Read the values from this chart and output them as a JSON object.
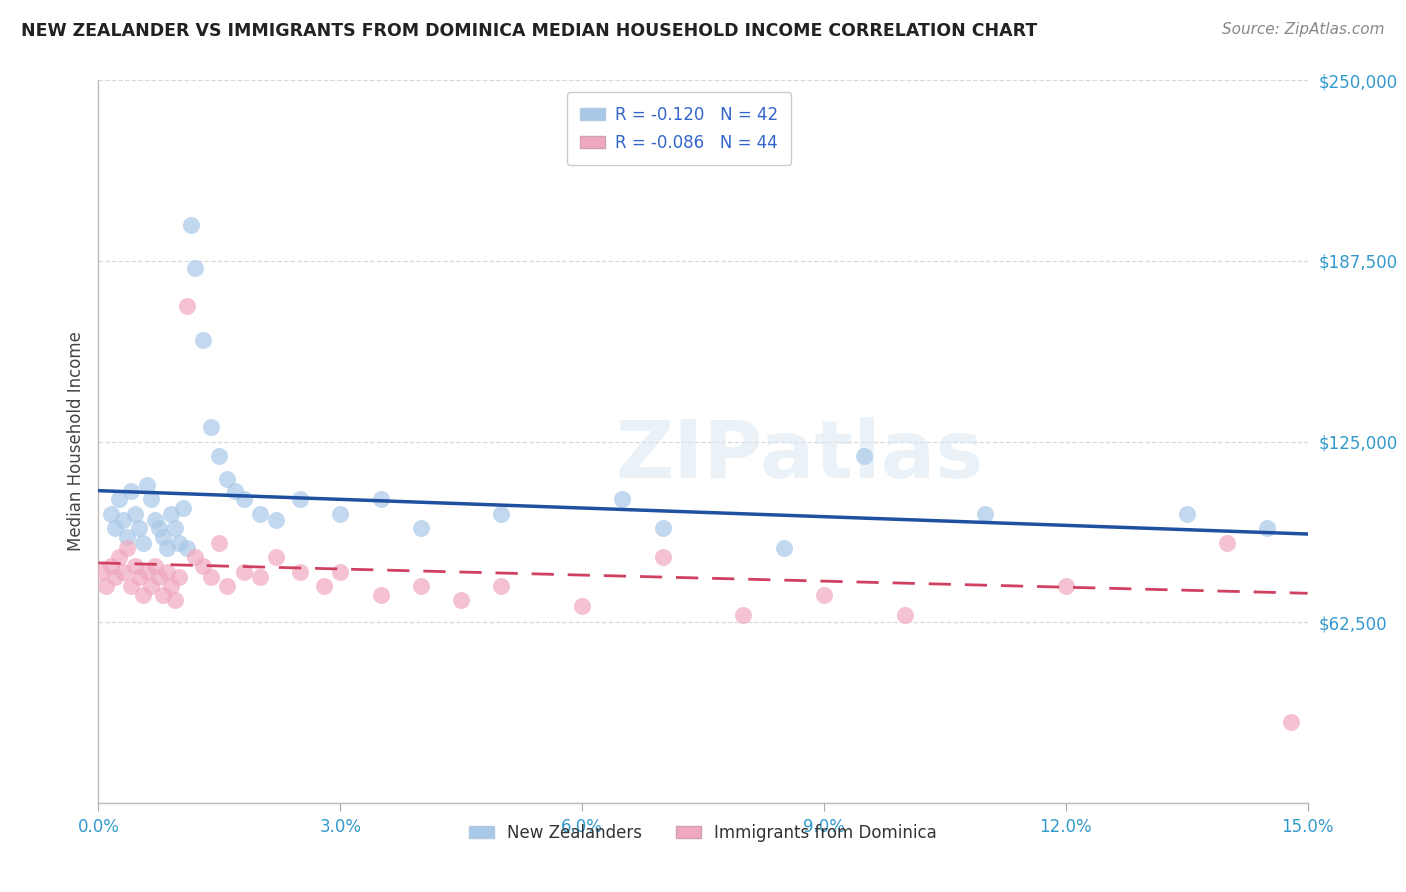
{
  "title": "NEW ZEALANDER VS IMMIGRANTS FROM DOMINICA MEDIAN HOUSEHOLD INCOME CORRELATION CHART",
  "source": "Source: ZipAtlas.com",
  "ylabel": "Median Household Income",
  "ytick_vals": [
    0,
    62500,
    125000,
    187500,
    250000
  ],
  "ytick_labels": [
    "",
    "$62,500",
    "$125,000",
    "$187,500",
    "$250,000"
  ],
  "xtick_labels": [
    "0.0%",
    "3.0%",
    "6.0%",
    "9.0%",
    "12.0%",
    "15.0%"
  ],
  "xtick_positions": [
    0,
    3,
    6,
    9,
    12,
    15
  ],
  "xlim": [
    0.0,
    15.0
  ],
  "ylim": [
    0,
    250000
  ],
  "watermark": "ZIPatlas",
  "legend1_labels": [
    "R = -0.120   N = 42",
    "R = -0.086   N = 44"
  ],
  "legend2_labels": [
    "New Zealanders",
    "Immigrants from Dominica"
  ],
  "series1_scatter_color": "#a8c8e8",
  "series2_scatter_color": "#f0a8c0",
  "series1_line_color": "#2050a0",
  "series2_line_color": "#d04060",
  "background_color": "#ffffff",
  "grid_color": "#d8d8d8",
  "title_color": "#222222",
  "axis_label_color": "#3399cc",
  "ylabel_color": "#444444",
  "blue_x": [
    0.15,
    0.2,
    0.25,
    0.3,
    0.35,
    0.4,
    0.45,
    0.5,
    0.55,
    0.6,
    0.65,
    0.7,
    0.75,
    0.8,
    0.85,
    0.9,
    0.95,
    1.0,
    1.05,
    1.1,
    1.15,
    1.2,
    1.3,
    1.4,
    1.5,
    1.6,
    1.7,
    1.8,
    2.0,
    2.2,
    2.5,
    3.0,
    3.5,
    4.0,
    5.0,
    6.5,
    7.0,
    8.5,
    9.5,
    11.0,
    13.5,
    14.5
  ],
  "blue_y": [
    100000,
    95000,
    105000,
    98000,
    92000,
    108000,
    100000,
    95000,
    90000,
    110000,
    105000,
    98000,
    95000,
    92000,
    88000,
    100000,
    95000,
    90000,
    102000,
    88000,
    200000,
    185000,
    160000,
    130000,
    120000,
    112000,
    108000,
    105000,
    100000,
    98000,
    105000,
    100000,
    105000,
    95000,
    100000,
    105000,
    95000,
    88000,
    120000,
    100000,
    100000,
    95000
  ],
  "pink_x": [
    0.05,
    0.1,
    0.15,
    0.2,
    0.25,
    0.3,
    0.35,
    0.4,
    0.45,
    0.5,
    0.55,
    0.6,
    0.65,
    0.7,
    0.75,
    0.8,
    0.85,
    0.9,
    0.95,
    1.0,
    1.1,
    1.2,
    1.3,
    1.4,
    1.5,
    1.6,
    1.8,
    2.0,
    2.2,
    2.5,
    2.8,
    3.0,
    3.5,
    4.0,
    4.5,
    5.0,
    6.0,
    7.0,
    8.0,
    9.0,
    10.0,
    12.0,
    14.0,
    14.8
  ],
  "pink_y": [
    80000,
    75000,
    82000,
    78000,
    85000,
    80000,
    88000,
    75000,
    82000,
    78000,
    72000,
    80000,
    75000,
    82000,
    78000,
    72000,
    80000,
    75000,
    70000,
    78000,
    172000,
    85000,
    82000,
    78000,
    90000,
    75000,
    80000,
    78000,
    85000,
    80000,
    75000,
    80000,
    72000,
    75000,
    70000,
    75000,
    68000,
    85000,
    65000,
    72000,
    65000,
    75000,
    90000,
    28000
  ]
}
